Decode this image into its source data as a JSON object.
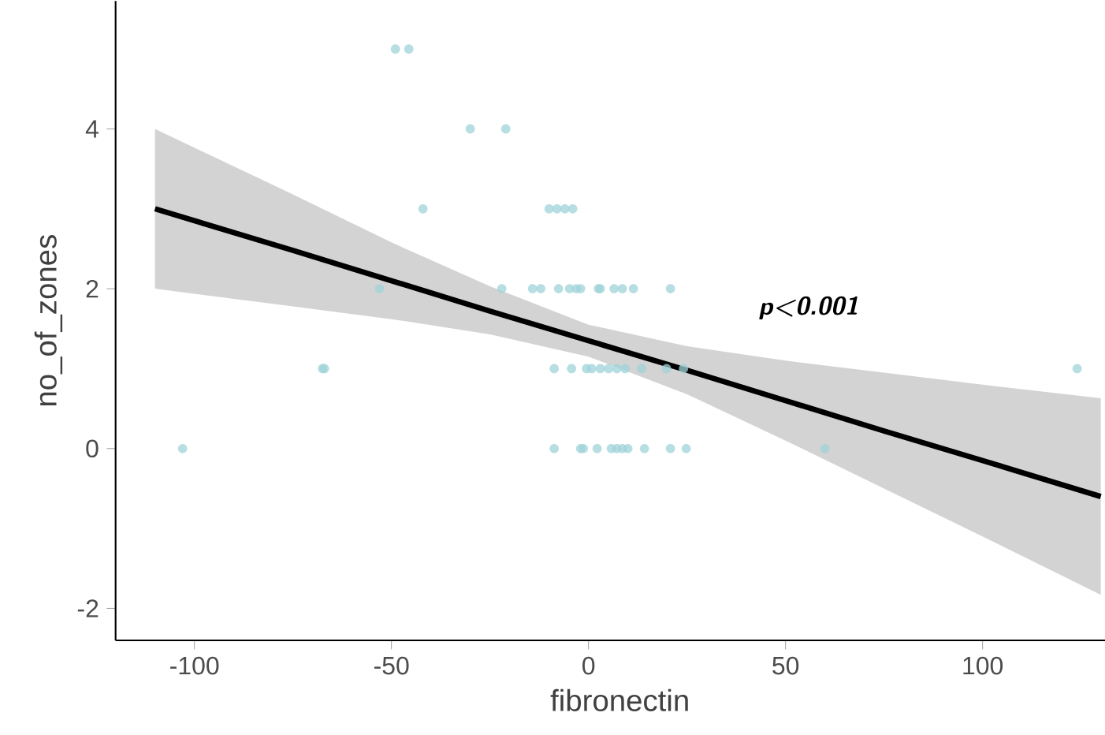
{
  "chart_data": {
    "type": "scatter",
    "xlabel": "fibronectin",
    "ylabel": "no_of_zones",
    "annotations": [
      "p<0.001"
    ],
    "xlim": [
      -120,
      136
    ],
    "ylim": [
      -2.4,
      5.6
    ],
    "xticks": [
      -100,
      -50,
      0,
      50,
      100
    ],
    "yticks": [
      -2,
      0,
      2,
      4
    ],
    "grid": false,
    "series": [
      {
        "marker": "circle",
        "color": "#9fd3d8",
        "x": [
          -103,
          -67.5,
          -67,
          -53,
          -42,
          -49,
          -45.6,
          -30,
          -21,
          -10,
          -8,
          -6,
          -4,
          -22,
          -14.2,
          -12.1,
          -7.6,
          -4.8,
          -3.1,
          -2,
          2.5,
          3,
          6.5,
          8.6,
          11.4,
          20.8,
          -8.7,
          -4.3,
          -0.5,
          0.8,
          3,
          5.1,
          7.2,
          9.3,
          13.5,
          19.8,
          24.1,
          124,
          -8.7,
          -2,
          -1.3,
          2.2,
          5.8,
          7.2,
          8.6,
          10,
          14.2,
          20.8,
          24.8,
          60
        ],
        "values": [
          0,
          1,
          1,
          2,
          3,
          5,
          5,
          4,
          4,
          3,
          3,
          3,
          3,
          2,
          2,
          2,
          2,
          2,
          2,
          2,
          2,
          2,
          2,
          2,
          2,
          2,
          1,
          1,
          1,
          1,
          1,
          1,
          1,
          1,
          1,
          1,
          1,
          1,
          0,
          0,
          0,
          0,
          0,
          0,
          0,
          0,
          0,
          0,
          0,
          0
        ]
      },
      {
        "type": "line",
        "color": "#000000",
        "x": [
          -110,
          -75,
          -50,
          -25,
          0,
          25,
          50,
          75,
          100,
          130
        ],
        "values": [
          3.0,
          2.48,
          2.1,
          1.72,
          1.35,
          0.98,
          0.6,
          0.22,
          -0.15,
          -0.6
        ],
        "lower": [
          2.0,
          1.78,
          1.62,
          1.43,
          1.15,
          0.68,
          0.1,
          -0.5,
          -1.1,
          -1.83
        ],
        "upper": [
          4.0,
          3.18,
          2.58,
          2.03,
          1.55,
          1.28,
          1.1,
          0.95,
          0.8,
          0.63
        ],
        "line_style": "solid"
      }
    ]
  }
}
